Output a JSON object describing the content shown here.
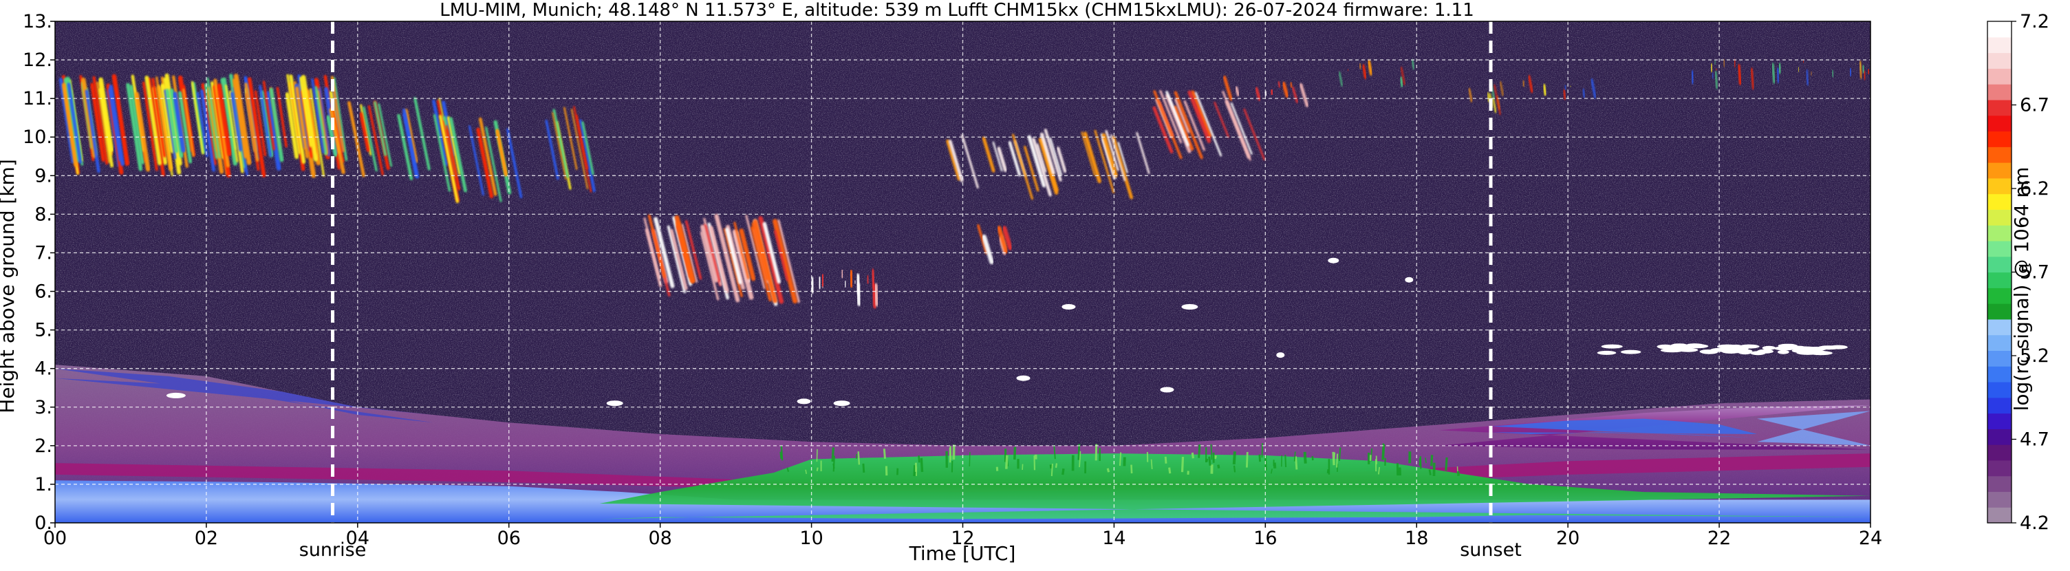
{
  "chart_data": {
    "type": "heatmap",
    "title": "LMU-MIM, Munich; 48.148° N 11.573° E, altitude: 539 m    Lufft CHM15kx (CHM15kxLMU): 26-07-2024    firmware: 1.11",
    "xlabel": "Time [UTC]",
    "ylabel": "Height above ground [km]",
    "xlim": [
      0,
      24
    ],
    "ylim": [
      0,
      13
    ],
    "x_ticks": [
      "00",
      "02",
      "04",
      "06",
      "08",
      "10",
      "12",
      "14",
      "16",
      "18",
      "20",
      "22",
      "24"
    ],
    "y_ticks": [
      "0.",
      "1.",
      "2.",
      "3.",
      "4.",
      "5.",
      "6.",
      "7.",
      "8.",
      "9.",
      "10.",
      "11.",
      "12.",
      "13."
    ],
    "grid": true,
    "colorbar": {
      "label": "log(rc-signal) @ 1064 nm",
      "range": [
        4.2,
        7.2
      ],
      "ticks": [
        "4.2",
        "4.7",
        "5.2",
        "5.7",
        "6.2",
        "6.7",
        "7.2"
      ],
      "colors": [
        "#a08aa6",
        "#8e6a98",
        "#7d4a8a",
        "#6d2a80",
        "#5e1678",
        "#4a0e96",
        "#3a16c8",
        "#2a3ae6",
        "#2a5af0",
        "#3a78f4",
        "#5a96f6",
        "#7ab2f8",
        "#9cc8fa",
        "#18a028",
        "#20b838",
        "#30c860",
        "#50d888",
        "#78e890",
        "#a8f070",
        "#d8f048",
        "#fff020",
        "#ffc818",
        "#ff9810",
        "#ff6008",
        "#ff2800",
        "#f01010",
        "#e83030",
        "#ec8080",
        "#f4b8b8",
        "#f8d8d8",
        "#fcecec",
        "#ffffff"
      ]
    },
    "events": [
      {
        "label": "sunrise",
        "x": 3.67
      },
      {
        "label": "sunset",
        "x": 18.98
      }
    ]
  }
}
